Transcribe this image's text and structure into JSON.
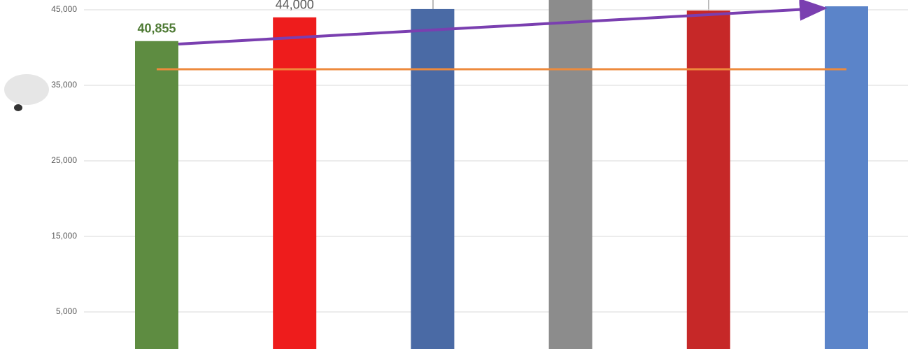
{
  "chart_data": {
    "type": "bar",
    "categories": [
      null,
      null,
      null,
      null,
      null,
      null
    ],
    "values": [
      40855,
      44000,
      45100,
      47000,
      44900,
      45460
    ],
    "value_labels": [
      "40,855",
      "44,000",
      null,
      null,
      null,
      null
    ],
    "colors": [
      "#5e8c41",
      "#ee1c1c",
      "#4a6aa5",
      "#8c8c8c",
      "#c62828",
      "#5b84c9"
    ],
    "label_colors": [
      "#4e7a34",
      "#595959",
      null,
      null,
      null,
      null
    ],
    "ylim": [
      0,
      46296
    ],
    "yticks": [
      {
        "value": 5000,
        "label": "5,000"
      },
      {
        "value": 15000,
        "label": "15,000"
      },
      {
        "value": 25000,
        "label": "25,000"
      },
      {
        "value": 35000,
        "label": "35,000"
      },
      {
        "value": 45000,
        "label": "45,000"
      }
    ],
    "grid": true,
    "reference_line": {
      "value": 37130,
      "color": "#ed8a3c"
    },
    "trend_arrow": {
      "start": 40460,
      "end": 45190,
      "color": "#7a3fb0"
    }
  }
}
